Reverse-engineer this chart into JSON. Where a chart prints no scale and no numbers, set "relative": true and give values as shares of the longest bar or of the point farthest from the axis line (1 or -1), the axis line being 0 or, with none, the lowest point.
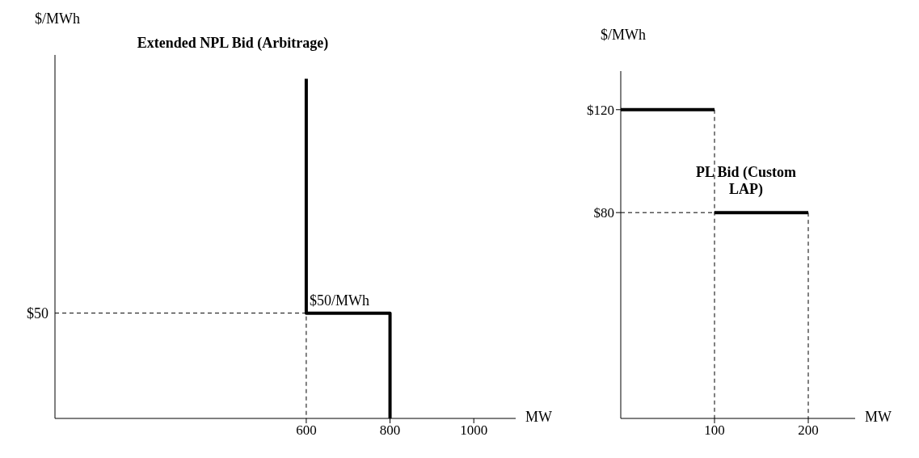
{
  "chart_data": [
    {
      "type": "line",
      "title": "Extended NPL Bid (Arbitrage)",
      "xlabel": "MW",
      "ylabel": "$/MWh",
      "xlim": [
        0,
        1100
      ],
      "xticks": [
        600,
        800,
        1000
      ],
      "relative": true,
      "grid": false,
      "marker": "none",
      "annotations": [
        {
          "text": "$50/MWh",
          "x": 600,
          "y": 0.31
        },
        {
          "text": "$50",
          "x": 0,
          "y": 0.31
        }
      ],
      "series": [
        {
          "color": "#000000",
          "x": [
            600,
            600,
            800,
            800
          ],
          "values": [
            1,
            0.31,
            0.31,
            0
          ],
          "line_style": "solid"
        },
        {
          "color": "#000000",
          "x": [
            0,
            600,
            600
          ],
          "values": [
            0.31,
            0.31,
            0
          ],
          "line_style": "dashed"
        }
      ]
    },
    {
      "type": "line",
      "title": "PL Bid (Custom LAP)",
      "xlabel": "MW",
      "ylabel": "$/MWh",
      "xlim": [
        0,
        250
      ],
      "ylim": [
        0,
        135
      ],
      "xticks": [
        100,
        200
      ],
      "yticks": [
        {
          "value": 80,
          "label": "$80"
        },
        {
          "value": 120,
          "label": "$120"
        }
      ],
      "grid": false,
      "marker": "none",
      "series": [
        {
          "color": "#000000",
          "x": [
            0,
            100
          ],
          "values": [
            120,
            120
          ],
          "line_style": "solid"
        },
        {
          "color": "#000000",
          "x": [
            100,
            200
          ],
          "values": [
            80,
            80
          ],
          "line_style": "solid"
        },
        {
          "color": "#000000",
          "x": [
            100,
            100
          ],
          "values": [
            120,
            0
          ],
          "line_style": "dashed"
        },
        {
          "color": "#000000",
          "x": [
            0,
            100
          ],
          "values": [
            80,
            80
          ],
          "line_style": "dashed"
        },
        {
          "color": "#000000",
          "x": [
            200,
            200
          ],
          "values": [
            80,
            0
          ],
          "line_style": "dashed"
        }
      ]
    }
  ]
}
